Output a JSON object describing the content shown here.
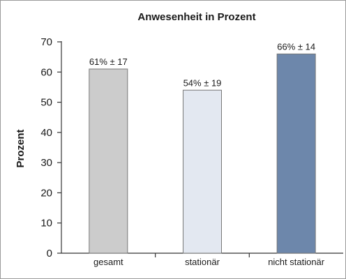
{
  "chart_data": {
    "type": "bar",
    "title": "Anwesenheit in Prozent",
    "xlabel": "",
    "ylabel": "Prozent",
    "ylim": [
      0,
      70
    ],
    "yticks": [
      0,
      10,
      20,
      30,
      40,
      50,
      60,
      70
    ],
    "grid": false,
    "legend": "none",
    "categories": [
      "gesamt",
      "stationär",
      "nicht stationär"
    ],
    "values": [
      61,
      54,
      66
    ],
    "data_labels": [
      "61% ± 17",
      "54% ± 19",
      "66% ± 14"
    ],
    "colors": [
      "#cccccc",
      "#e3e8f1",
      "#6d87ab"
    ]
  }
}
